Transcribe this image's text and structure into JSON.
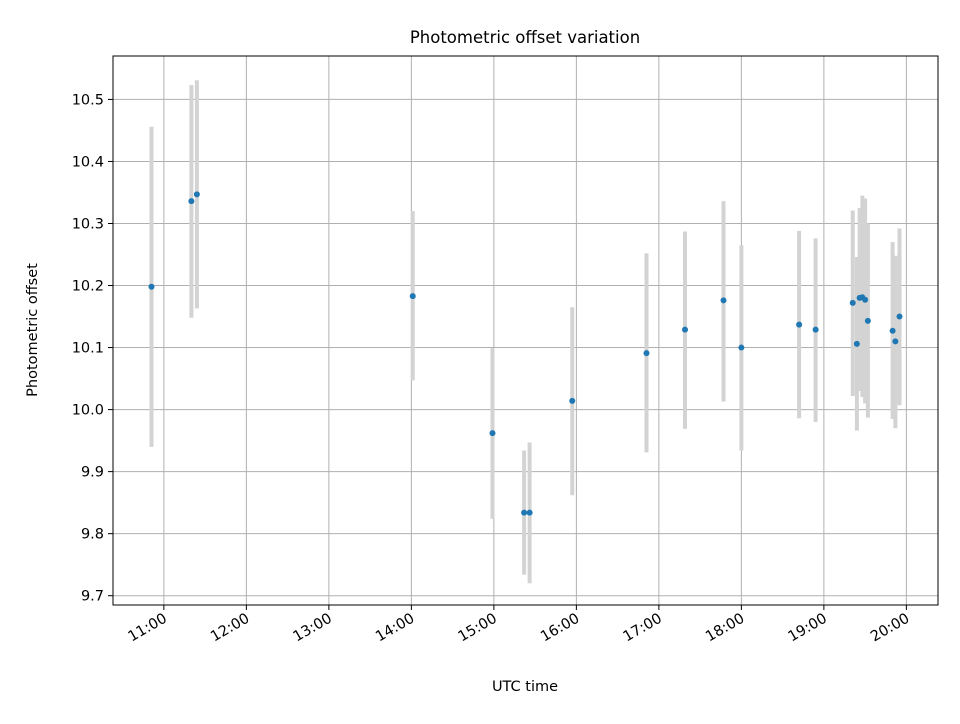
{
  "chart_data": {
    "type": "scatter",
    "title": "Photometric offset variation",
    "xlabel": "UTC time",
    "ylabel": "Photometric offset",
    "x_ticks": [
      "11:00",
      "12:00",
      "13:00",
      "14:00",
      "15:00",
      "16:00",
      "17:00",
      "18:00",
      "19:00",
      "20:00"
    ],
    "y_ticks": [
      "9.7",
      "9.8",
      "9.9",
      "10.0",
      "10.1",
      "10.2",
      "10.3",
      "10.4",
      "10.5"
    ],
    "xlim": [
      "10:23",
      "20:23"
    ],
    "ylim": [
      9.685,
      10.57
    ],
    "grid": true,
    "marker_color": "#1f77b4",
    "errorbar_color": "#d3d3d3",
    "points": [
      {
        "x": "10:51",
        "y": 10.198,
        "ylow": 9.94,
        "yhigh": 10.456
      },
      {
        "x": "11:20",
        "y": 10.336,
        "ylow": 10.148,
        "yhigh": 10.523
      },
      {
        "x": "11:24",
        "y": 10.347,
        "ylow": 10.163,
        "yhigh": 10.531
      },
      {
        "x": "14:01",
        "y": 10.183,
        "ylow": 10.047,
        "yhigh": 10.32
      },
      {
        "x": "14:59",
        "y": 9.962,
        "ylow": 9.824,
        "yhigh": 10.099
      },
      {
        "x": "15:22",
        "y": 9.834,
        "ylow": 9.734,
        "yhigh": 9.934
      },
      {
        "x": "15:26",
        "y": 9.834,
        "ylow": 9.72,
        "yhigh": 9.947
      },
      {
        "x": "15:57",
        "y": 10.014,
        "ylow": 9.862,
        "yhigh": 10.165
      },
      {
        "x": "16:51",
        "y": 10.091,
        "ylow": 9.931,
        "yhigh": 10.252
      },
      {
        "x": "17:19",
        "y": 10.129,
        "ylow": 9.969,
        "yhigh": 10.287
      },
      {
        "x": "17:47",
        "y": 10.176,
        "ylow": 10.013,
        "yhigh": 10.336
      },
      {
        "x": "18:00",
        "y": 10.1,
        "ylow": 9.934,
        "yhigh": 10.265
      },
      {
        "x": "18:42",
        "y": 10.137,
        "ylow": 9.986,
        "yhigh": 10.288
      },
      {
        "x": "18:54",
        "y": 10.129,
        "ylow": 9.98,
        "yhigh": 10.276
      },
      {
        "x": "19:21",
        "y": 10.172,
        "ylow": 10.022,
        "yhigh": 10.321
      },
      {
        "x": "19:24",
        "y": 10.106,
        "ylow": 9.966,
        "yhigh": 10.246
      },
      {
        "x": "19:26",
        "y": 10.18,
        "ylow": 10.03,
        "yhigh": 10.325
      },
      {
        "x": "19:28",
        "y": 10.181,
        "ylow": 10.02,
        "yhigh": 10.345
      },
      {
        "x": "19:30",
        "y": 10.177,
        "ylow": 10.01,
        "yhigh": 10.34
      },
      {
        "x": "19:32",
        "y": 10.143,
        "ylow": 9.987,
        "yhigh": 10.3
      },
      {
        "x": "19:50",
        "y": 10.127,
        "ylow": 9.985,
        "yhigh": 10.27
      },
      {
        "x": "19:52",
        "y": 10.11,
        "ylow": 9.97,
        "yhigh": 10.248
      },
      {
        "x": "19:55",
        "y": 10.15,
        "ylow": 10.007,
        "yhigh": 10.292
      }
    ]
  }
}
